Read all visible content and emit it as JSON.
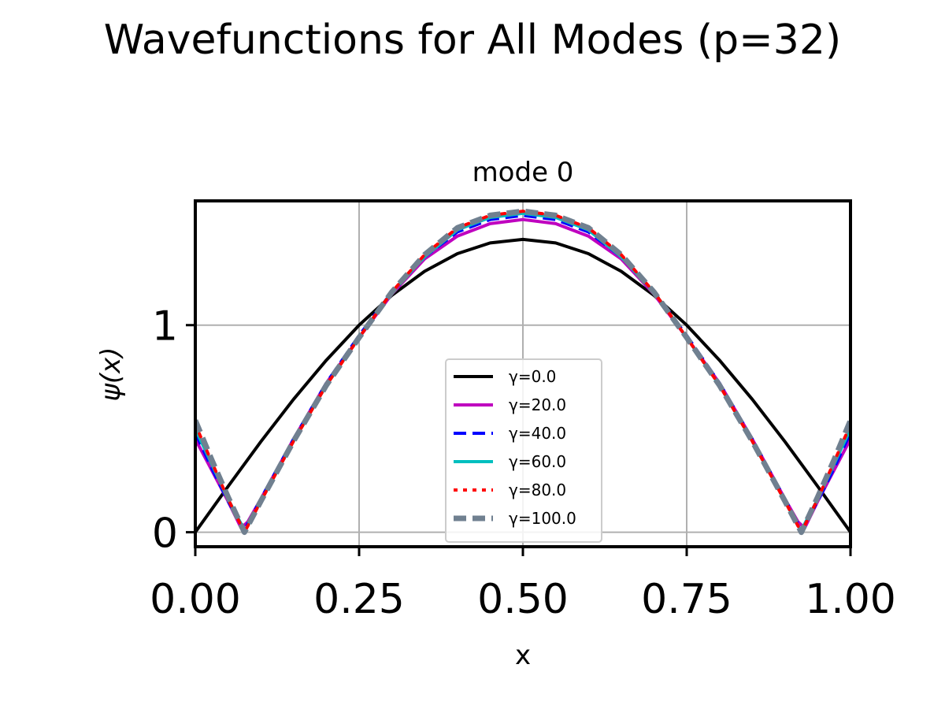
{
  "figure": {
    "suptitle": "Wavefunctions for All Modes (p=32)"
  },
  "chart_data": {
    "type": "line",
    "title": "mode 0",
    "xlabel": "x",
    "ylabel": "ψ(x)",
    "xlim": [
      0.0,
      1.0
    ],
    "ylim": [
      -0.07,
      1.6
    ],
    "x_ticks": [
      0.0,
      0.25,
      0.5,
      0.75,
      1.0
    ],
    "x_tick_labels": [
      "0.00",
      "0.25",
      "0.50",
      "0.75",
      "1.00"
    ],
    "y_ticks": [
      0,
      1
    ],
    "y_tick_labels": [
      "0",
      "1"
    ],
    "grid": true,
    "legend_position": "lower center",
    "series": [
      {
        "name": "γ=0.0",
        "color": "#000000",
        "dash": "solid",
        "x": [
          0.0,
          0.05,
          0.1,
          0.15,
          0.2,
          0.25,
          0.3,
          0.35,
          0.4,
          0.45,
          0.5,
          0.55,
          0.6,
          0.65,
          0.7,
          0.75,
          0.8,
          0.85,
          0.9,
          0.95,
          1.0
        ],
        "y": [
          0.0,
          0.221,
          0.437,
          0.642,
          0.831,
          1.0,
          1.144,
          1.26,
          1.345,
          1.397,
          1.414,
          1.397,
          1.345,
          1.26,
          1.144,
          1.0,
          0.831,
          0.642,
          0.437,
          0.221,
          0.0
        ]
      },
      {
        "name": "γ=20.0",
        "color": "#bf00bf",
        "dash": "solid",
        "x": [
          0.0,
          0.025,
          0.05,
          0.07,
          0.08,
          0.1,
          0.15,
          0.2,
          0.25,
          0.3,
          0.35,
          0.4,
          0.45,
          0.5,
          0.55,
          0.6,
          0.65,
          0.7,
          0.75,
          0.8,
          0.85,
          0.9,
          0.92,
          0.93,
          0.95,
          0.975,
          1.0
        ],
        "y": [
          0.45,
          0.3,
          0.15,
          0.02,
          0.05,
          0.16,
          0.45,
          0.72,
          0.94,
          1.15,
          1.32,
          1.43,
          1.49,
          1.51,
          1.49,
          1.43,
          1.32,
          1.15,
          0.94,
          0.72,
          0.45,
          0.16,
          0.05,
          0.02,
          0.15,
          0.3,
          0.45
        ]
      },
      {
        "name": "γ=40.0",
        "color": "#0000ff",
        "dash": "dashed",
        "x": [
          0.0,
          0.025,
          0.05,
          0.075,
          0.08,
          0.1,
          0.15,
          0.2,
          0.25,
          0.3,
          0.35,
          0.4,
          0.45,
          0.5,
          0.55,
          0.6,
          0.65,
          0.7,
          0.75,
          0.8,
          0.85,
          0.9,
          0.92,
          0.925,
          0.95,
          0.975,
          1.0
        ],
        "y": [
          0.48,
          0.31,
          0.15,
          0.01,
          0.04,
          0.16,
          0.45,
          0.72,
          0.95,
          1.16,
          1.33,
          1.45,
          1.51,
          1.53,
          1.51,
          1.45,
          1.33,
          1.16,
          0.95,
          0.72,
          0.45,
          0.16,
          0.04,
          0.01,
          0.15,
          0.31,
          0.48
        ]
      },
      {
        "name": "γ=60.0",
        "color": "#00bfbf",
        "dash": "solid",
        "x": [
          0.0,
          0.025,
          0.05,
          0.075,
          0.08,
          0.1,
          0.15,
          0.2,
          0.25,
          0.3,
          0.35,
          0.4,
          0.45,
          0.5,
          0.55,
          0.6,
          0.65,
          0.7,
          0.75,
          0.8,
          0.85,
          0.9,
          0.92,
          0.925,
          0.95,
          0.975,
          1.0
        ],
        "y": [
          0.5,
          0.33,
          0.16,
          0.01,
          0.03,
          0.15,
          0.44,
          0.71,
          0.94,
          1.16,
          1.33,
          1.46,
          1.52,
          1.54,
          1.52,
          1.46,
          1.33,
          1.16,
          0.94,
          0.71,
          0.44,
          0.15,
          0.03,
          0.01,
          0.16,
          0.33,
          0.5
        ]
      },
      {
        "name": "γ=80.0",
        "color": "#ff0000",
        "dash": "dotted",
        "x": [
          0.0,
          0.025,
          0.05,
          0.075,
          0.08,
          0.1,
          0.15,
          0.2,
          0.25,
          0.3,
          0.35,
          0.4,
          0.45,
          0.5,
          0.55,
          0.6,
          0.65,
          0.7,
          0.75,
          0.8,
          0.85,
          0.9,
          0.92,
          0.925,
          0.95,
          0.975,
          1.0
        ],
        "y": [
          0.52,
          0.34,
          0.16,
          0.0,
          0.03,
          0.15,
          0.44,
          0.71,
          0.94,
          1.16,
          1.34,
          1.47,
          1.53,
          1.55,
          1.53,
          1.47,
          1.34,
          1.16,
          0.94,
          0.71,
          0.44,
          0.15,
          0.03,
          0.0,
          0.16,
          0.34,
          0.52
        ]
      },
      {
        "name": "γ=100.0",
        "color": "#708090",
        "dash": "dashed",
        "x": [
          0.0,
          0.025,
          0.05,
          0.075,
          0.08,
          0.1,
          0.15,
          0.2,
          0.25,
          0.3,
          0.35,
          0.4,
          0.45,
          0.5,
          0.55,
          0.6,
          0.65,
          0.7,
          0.75,
          0.8,
          0.85,
          0.9,
          0.92,
          0.925,
          0.95,
          0.975,
          1.0
        ],
        "y": [
          0.54,
          0.35,
          0.17,
          0.0,
          0.03,
          0.15,
          0.44,
          0.71,
          0.94,
          1.16,
          1.34,
          1.47,
          1.53,
          1.55,
          1.53,
          1.47,
          1.34,
          1.16,
          0.94,
          0.71,
          0.44,
          0.15,
          0.03,
          0.0,
          0.17,
          0.35,
          0.54
        ]
      }
    ]
  }
}
